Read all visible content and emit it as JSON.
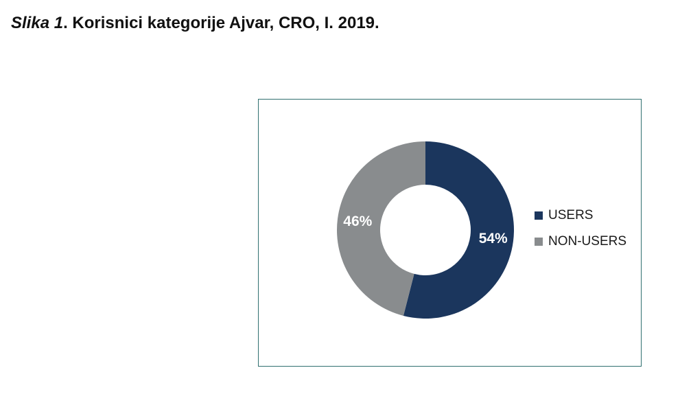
{
  "caption": {
    "figure_label": "Slika 1",
    "title": ". Korisnici kategorije Ajvar, CRO, I. 2019."
  },
  "chart_data": {
    "type": "pie",
    "donut": true,
    "categories": [
      "USERS",
      "NON-USERS"
    ],
    "values": [
      54,
      46
    ],
    "labels": [
      "54%",
      "46%"
    ],
    "colors": [
      "#1b365d",
      "#898c8e"
    ],
    "legend_position": "right"
  }
}
